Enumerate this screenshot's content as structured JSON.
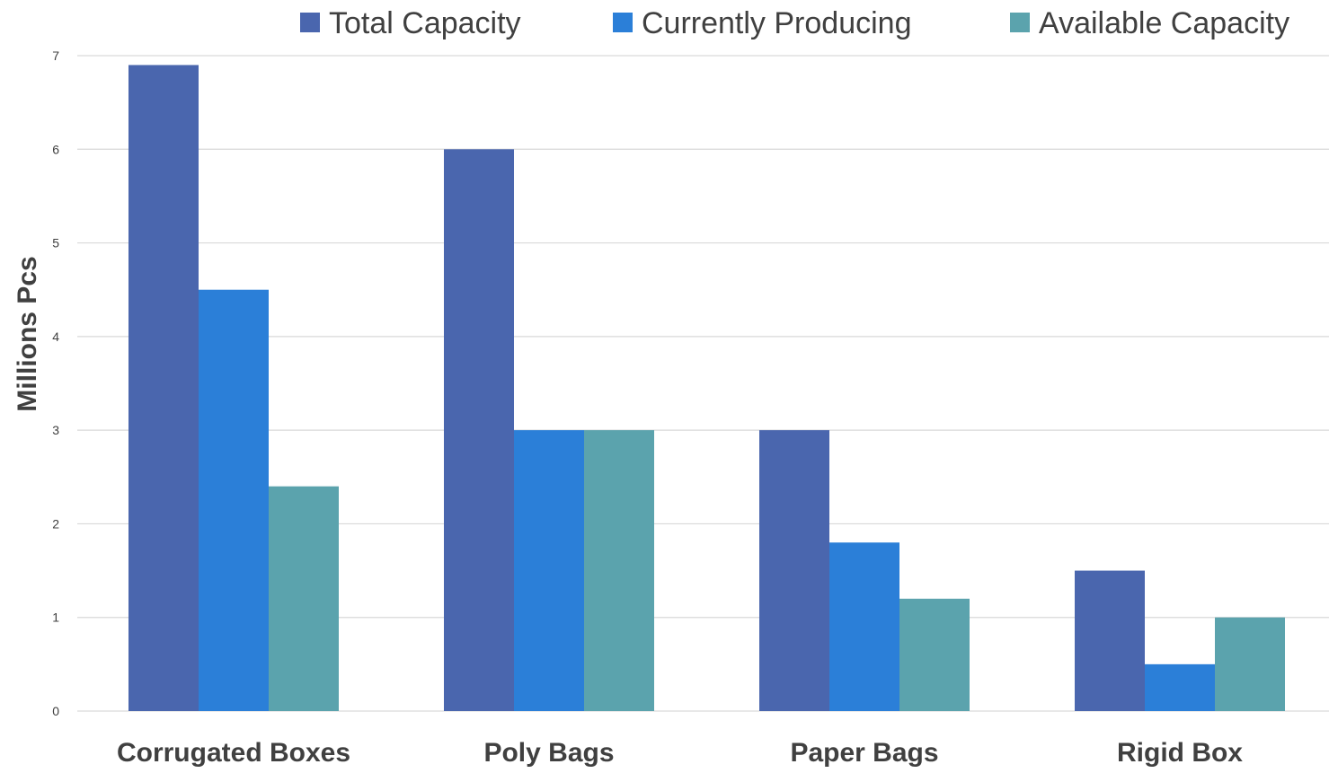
{
  "chart_data": {
    "type": "bar",
    "title": "",
    "xlabel": "",
    "ylabel": "Millions Pcs",
    "ylim": [
      0,
      7
    ],
    "yticks": [
      0,
      1,
      2,
      3,
      4,
      5,
      6,
      7
    ],
    "grid": true,
    "legend_position": "top",
    "categories": [
      "Corrugated Boxes",
      "Poly Bags",
      "Paper Bags",
      "Rigid Box"
    ],
    "series": [
      {
        "name": "Total Capacity",
        "color": "#4a66ae",
        "values": [
          6.9,
          6.0,
          3.0,
          1.5
        ]
      },
      {
        "name": "Currently Producing",
        "color": "#2b7fd8",
        "values": [
          4.5,
          3.0,
          1.8,
          0.5
        ]
      },
      {
        "name": "Available Capacity",
        "color": "#5ba3ad",
        "values": [
          2.4,
          3.0,
          1.2,
          1.0
        ]
      }
    ]
  }
}
